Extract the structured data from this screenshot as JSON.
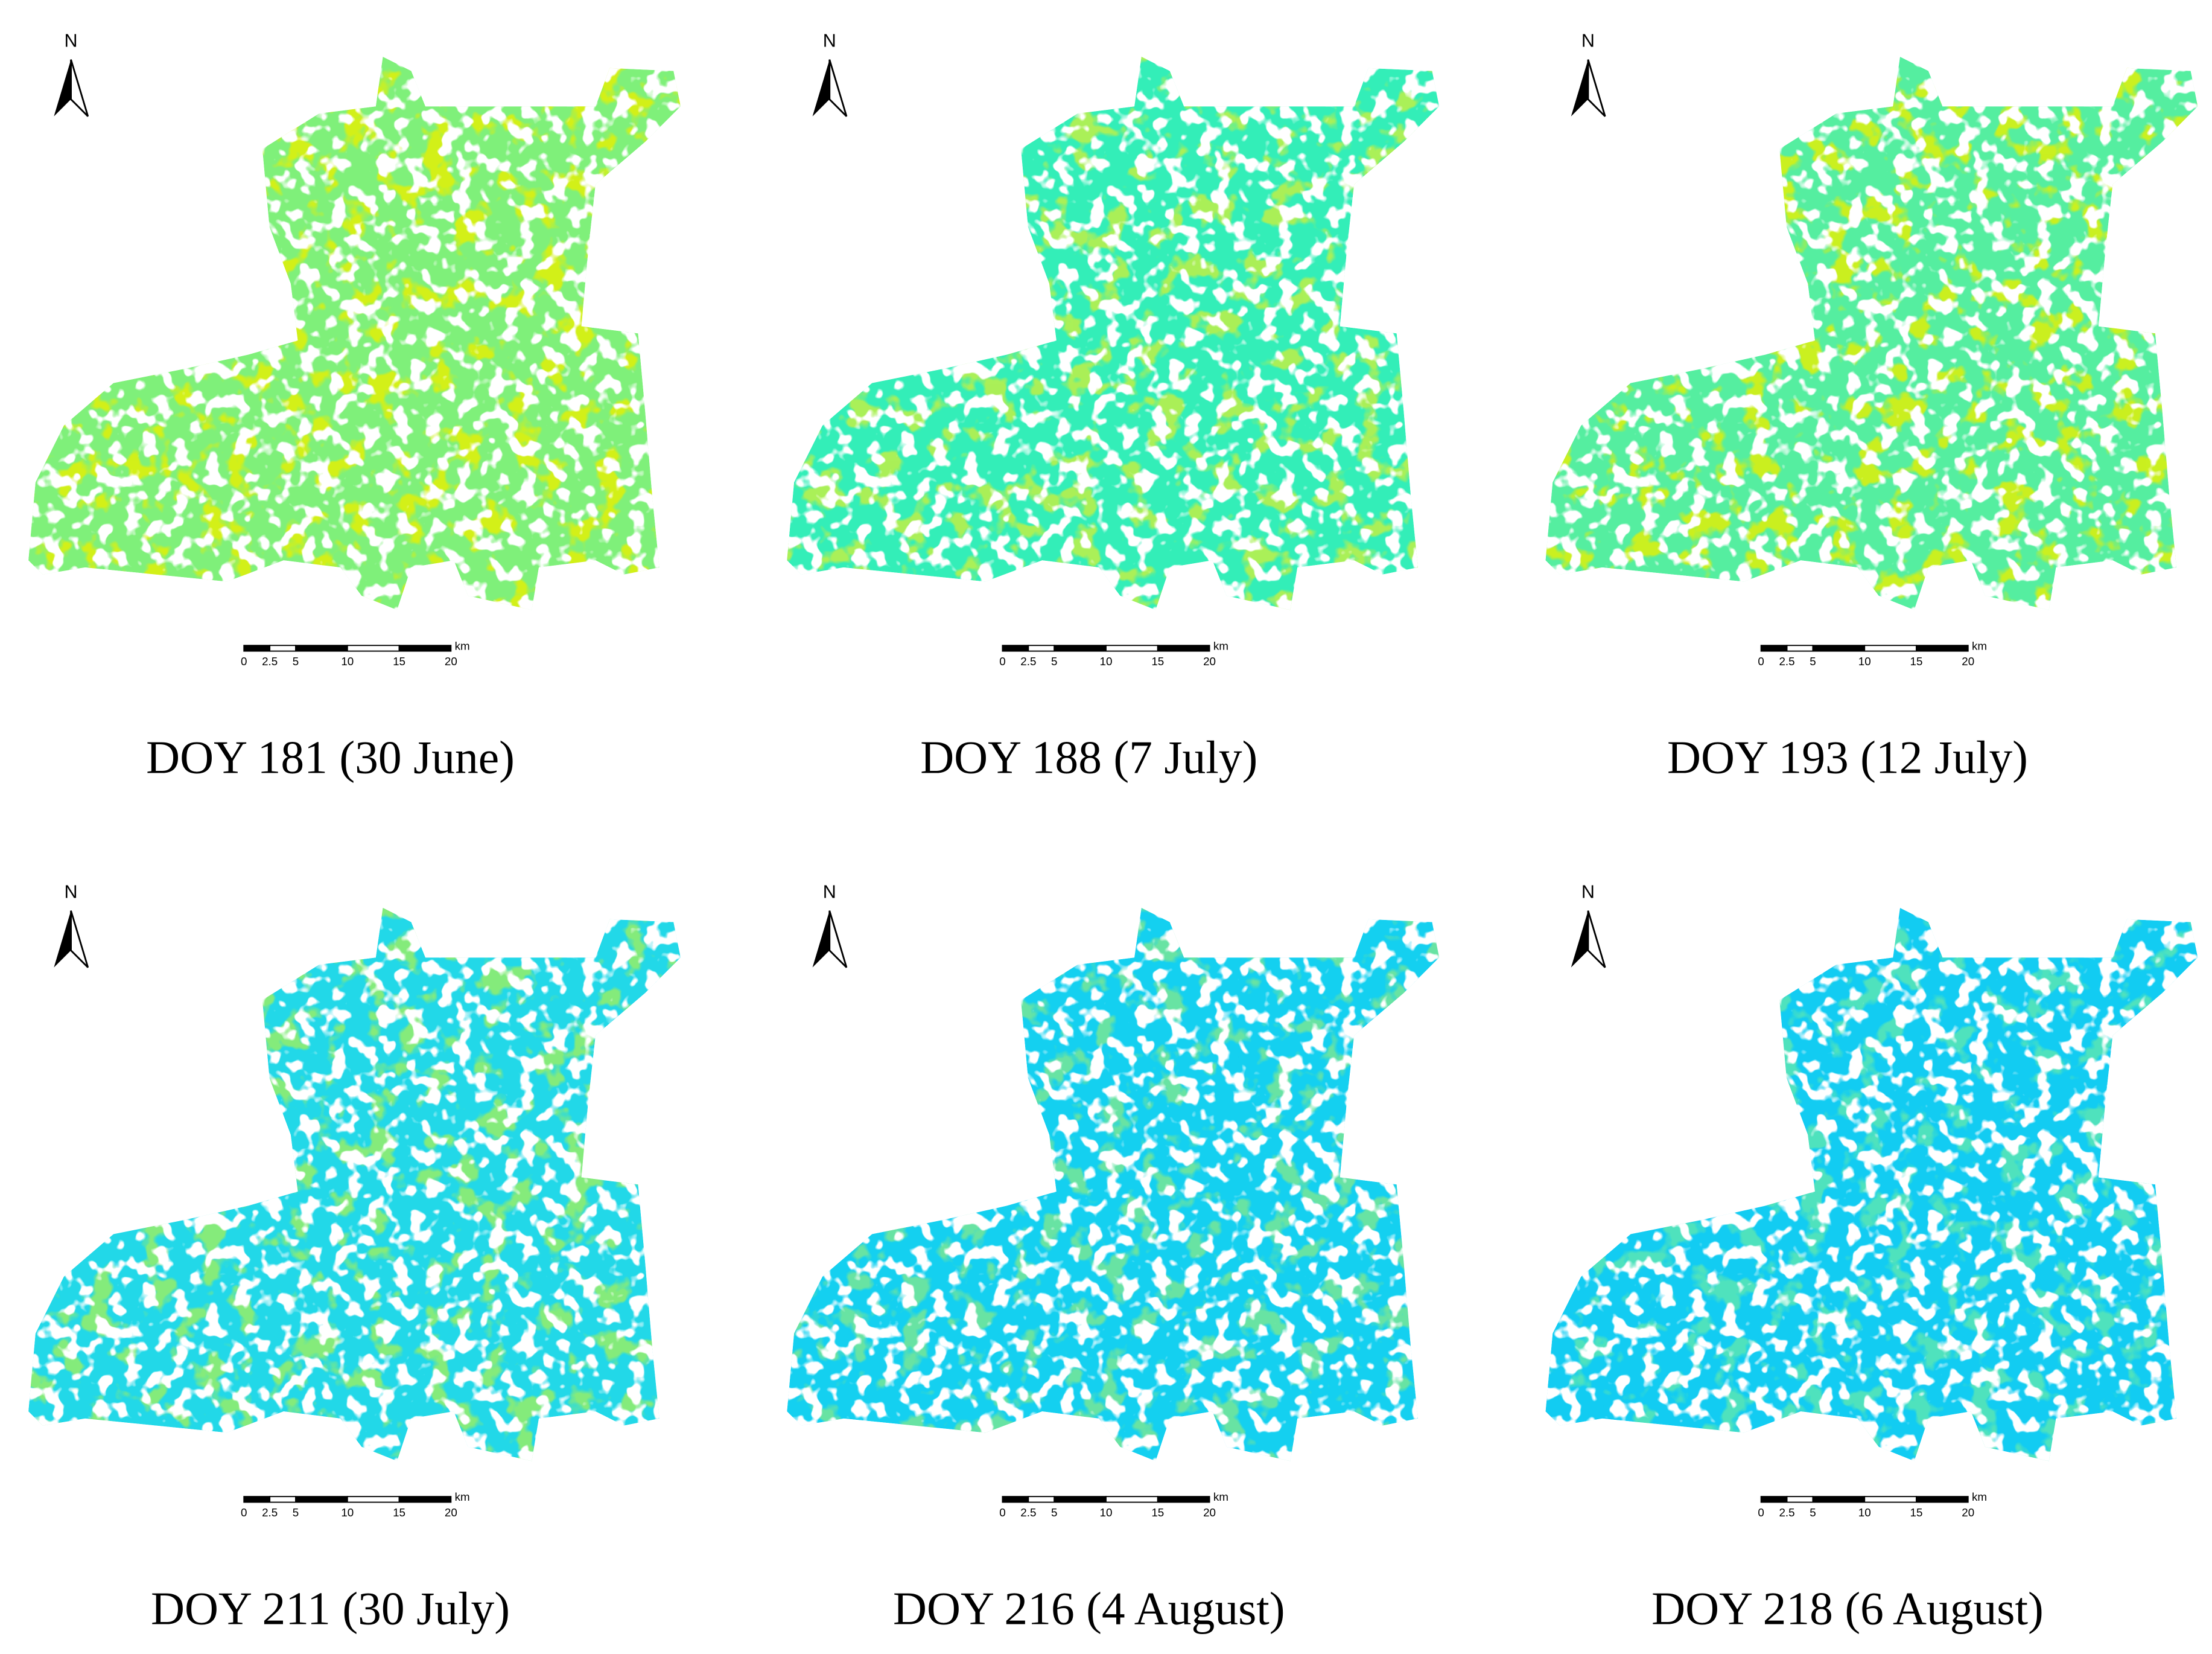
{
  "panels": [
    {
      "label": "DOY 181 (30 June)",
      "color": "#7ff07a",
      "accent": "#e8f000"
    },
    {
      "label": "DOY 188 (7 July)",
      "color": "#33eeb8",
      "accent": "#c8f040"
    },
    {
      "label": "DOY 193 (12 July)",
      "color": "#55eea0",
      "accent": "#e8f000"
    },
    {
      "label": "DOY 211 (30 July)",
      "color": "#22d8e8",
      "accent": "#9ef060"
    },
    {
      "label": "DOY 216 (4 August)",
      "color": "#14d0f0",
      "accent": "#7ee890"
    },
    {
      "label": "DOY 218 (6 August)",
      "color": "#12ccf2",
      "accent": "#5ee8b0"
    }
  ],
  "north": "N",
  "scale_bar": {
    "ticks": [
      0,
      2.5,
      5,
      10,
      15,
      20
    ],
    "unit": "km"
  }
}
